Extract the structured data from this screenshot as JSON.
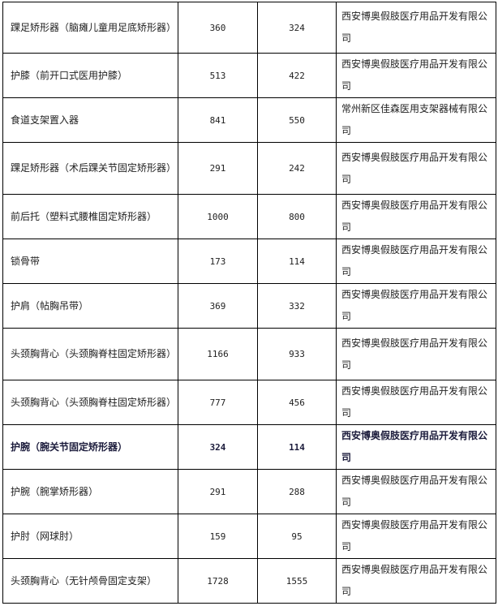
{
  "table": {
    "rows": [
      {
        "name": "踝足矫形器（脑瘫儿童用足底矫形器）",
        "a": "360",
        "b": "324",
        "company": "西安博奥假肢医疗用品开发有限公司"
      },
      {
        "name": "护膝（前开口式医用护膝）",
        "a": "513",
        "b": "422",
        "company": "西安博奥假肢医疗用品开发有限公司"
      },
      {
        "name": "食道支架置入器",
        "a": "841",
        "b": "550",
        "company": "常州新区佳森医用支架器械有限公司"
      },
      {
        "name": "踝足矫形器（术后踝关节固定矫形器）",
        "a": "291",
        "b": "242",
        "company": "西安博奥假肢医疗用品开发有限公司"
      },
      {
        "name": "前后托（塑料式腰椎固定矫形器）",
        "a": "1000",
        "b": "800",
        "company": "西安博奥假肢医疗用品开发有限公司"
      },
      {
        "name": "锁骨带",
        "a": "173",
        "b": "114",
        "company": "西安博奥假肢医疗用品开发有限公司"
      },
      {
        "name": "护肩（帖胸吊带）",
        "a": "369",
        "b": "332",
        "company": "西安博奥假肢医疗用品开发有限公司"
      },
      {
        "name": "头颈胸背心（头颈胸脊柱固定矫形器）",
        "a": "1166",
        "b": "933",
        "company": "西安博奥假肢医疗用品开发有限公司"
      },
      {
        "name": "头颈胸背心（头颈胸脊柱固定矫形器）",
        "a": "777",
        "b": "456",
        "company": "西安博奥假肢医疗用品开发有限公司"
      },
      {
        "name": "护腕（腕关节固定矫形器）",
        "a": "324",
        "b": "114",
        "company": "西安博奥假肢医疗用品开发有限公司",
        "bold": true
      },
      {
        "name": "护腕（腕掌矫形器）",
        "a": "291",
        "b": "288",
        "company": "西安博奥假肢医疗用品开发有限公司"
      },
      {
        "name": "护肘（网球肘）",
        "a": "159",
        "b": "95",
        "company": "西安博奥假肢医疗用品开发有限公司"
      },
      {
        "name": "头颈胸背心（无针颅骨固定支架）",
        "a": "1728",
        "b": "1555",
        "company": "西安博奥假肢医疗用品开发有限公司"
      }
    ]
  }
}
